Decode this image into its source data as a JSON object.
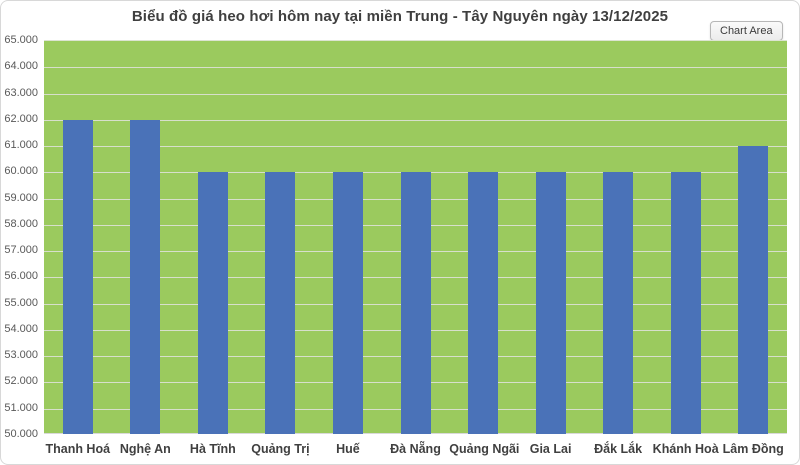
{
  "chart": {
    "title": "Biểu đồ giá heo hơi hôm nay tại miền Trung - Tây Nguyên ngày 13/12/2025",
    "tooltip_label": "Chart Area"
  },
  "chart_data": {
    "type": "bar",
    "title": "Biểu đồ giá heo hơi hôm nay tại miền Trung - Tây Nguyên ngày 13/12/2025",
    "categories": [
      "Thanh Hoá",
      "Nghệ An",
      "Hà Tĩnh",
      "Quảng Trị",
      "Huế",
      "Đà Nẵng",
      "Quảng Ngãi",
      "Gia Lai",
      "Đắk Lắk",
      "Khánh Hoà",
      "Lâm Đồng"
    ],
    "values": [
      62000,
      62000,
      60000,
      60000,
      60000,
      60000,
      60000,
      60000,
      60000,
      60000,
      61000
    ],
    "xlabel": "",
    "ylabel": "",
    "ylim": [
      50000,
      65000
    ],
    "ytick_step": 1000,
    "ytick_labels": [
      "65.000",
      "64.000",
      "63.000",
      "62.000",
      "61.000",
      "60.000",
      "59.000",
      "58.000",
      "57.000",
      "56.000",
      "55.000",
      "54.000",
      "53.000",
      "52.000",
      "51.000",
      "50.000"
    ],
    "grid": true,
    "legend": "none",
    "bar_color": "#4a72b8",
    "plot_background_color": "#9bca5e",
    "gridline_color": "#d7dfcb"
  }
}
